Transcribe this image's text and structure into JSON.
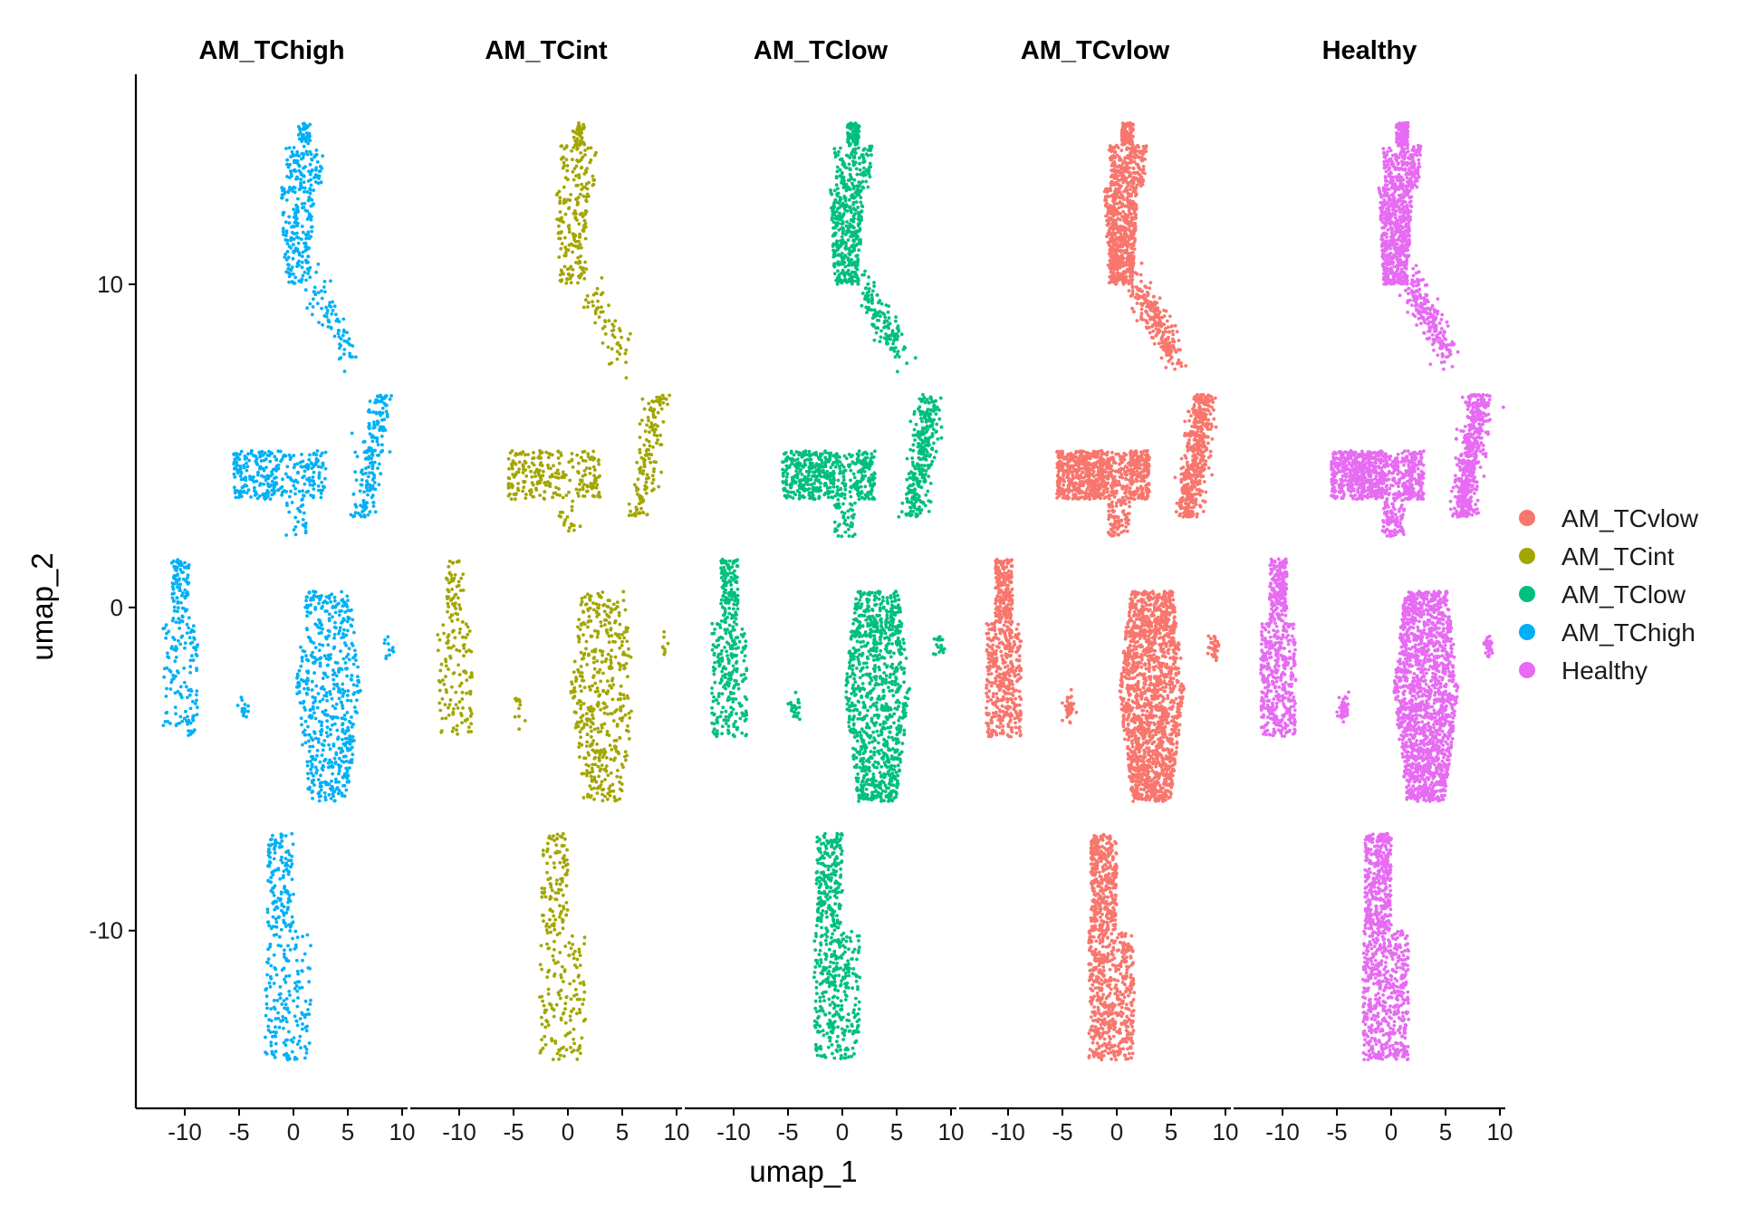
{
  "chart_data": {
    "type": "scatter",
    "facet_by": "group",
    "panels": [
      "AM_TChigh",
      "AM_TCint",
      "AM_TClow",
      "AM_TCvlow",
      "Healthy"
    ],
    "xlabel": "umap_1",
    "ylabel": "umap_2",
    "xlim": [
      -14.5,
      10.5
    ],
    "ylim": [
      -15.5,
      16.5
    ],
    "x_ticks": [
      -10,
      -5,
      0,
      5,
      10
    ],
    "x_tick_labels": [
      "-10",
      "-5",
      "0",
      "5",
      "10"
    ],
    "y_ticks": [
      10,
      0,
      -10
    ],
    "y_tick_labels": [
      "10",
      "0",
      "-10"
    ],
    "grid": false,
    "legend_position": "right",
    "legend": [
      {
        "name": "AM_TCvlow",
        "color": "#F8766D"
      },
      {
        "name": "AM_TCint",
        "color": "#A3A500"
      },
      {
        "name": "AM_TClow",
        "color": "#00BF7D"
      },
      {
        "name": "AM_TChigh",
        "color": "#00B0F6"
      },
      {
        "name": "Healthy",
        "color": "#E76BF3"
      }
    ],
    "series": [
      {
        "name": "AM_TChigh",
        "color": "#00B0F6",
        "relative_density": 0.35
      },
      {
        "name": "AM_TCint",
        "color": "#A3A500",
        "relative_density": 0.28
      },
      {
        "name": "AM_TClow",
        "color": "#00BF7D",
        "relative_density": 0.6
      },
      {
        "name": "AM_TCvlow",
        "color": "#F8766D",
        "relative_density": 1.0
      },
      {
        "name": "Healthy",
        "color": "#E76BF3",
        "relative_density": 1.0
      }
    ],
    "clusters": [
      {
        "label": "top_main",
        "x_range": [
          -2,
          3
        ],
        "y_range": [
          10,
          15
        ]
      },
      {
        "label": "top_tail",
        "x_range": [
          2,
          6
        ],
        "y_range": [
          7.5,
          10
        ]
      },
      {
        "label": "mid_left",
        "x_range": [
          -6,
          3
        ],
        "y_range": [
          2.5,
          5.5
        ]
      },
      {
        "label": "mid_right",
        "x_range": [
          5,
          9
        ],
        "y_range": [
          3,
          6.5
        ]
      },
      {
        "label": "far_left",
        "x_range": [
          -12,
          -9
        ],
        "y_range": [
          -4,
          1.5
        ]
      },
      {
        "label": "small",
        "x_range": [
          -5,
          -4
        ],
        "y_range": [
          -3.5,
          -2.5
        ]
      },
      {
        "label": "center_big",
        "x_range": [
          0,
          6
        ],
        "y_range": [
          -6,
          0
        ]
      },
      {
        "label": "right_dot",
        "x_range": [
          8,
          9.5
        ],
        "y_range": [
          -1.5,
          -1
        ]
      },
      {
        "label": "bottom",
        "x_range": [
          -3,
          2
        ],
        "y_range": [
          -14,
          -7
        ]
      }
    ]
  }
}
